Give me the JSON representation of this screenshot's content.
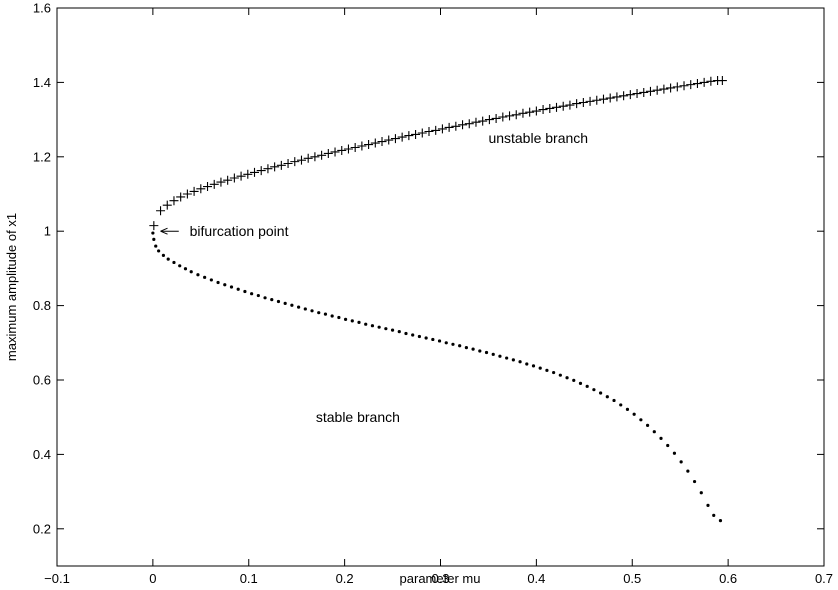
{
  "chart_data": {
    "type": "scatter",
    "title": "",
    "xlabel": "parameter mu",
    "ylabel": "maximum amplitude of x1",
    "xlim": [
      -0.1,
      0.7
    ],
    "ylim": [
      0.1,
      1.6
    ],
    "xticks": [
      -0.1,
      0,
      0.1,
      0.2,
      0.3,
      0.4,
      0.5,
      0.6,
      0.7
    ],
    "yticks": [
      0.2,
      0.4,
      0.6,
      0.8,
      1,
      1.2,
      1.4,
      1.6
    ],
    "grid": false,
    "series": [
      {
        "name": "unstable branch",
        "marker": "plus",
        "points": [
          [
            0.001,
            1.015
          ],
          [
            0.008,
            1.055
          ],
          [
            0.015,
            1.07
          ],
          [
            0.022,
            1.082
          ],
          [
            0.029,
            1.092
          ],
          [
            0.036,
            1.1
          ],
          [
            0.043,
            1.107
          ],
          [
            0.05,
            1.114
          ],
          [
            0.057,
            1.12
          ],
          [
            0.064,
            1.126
          ],
          [
            0.071,
            1.132
          ],
          [
            0.078,
            1.137
          ],
          [
            0.085,
            1.143
          ],
          [
            0.092,
            1.148
          ],
          [
            0.099,
            1.153
          ],
          [
            0.106,
            1.158
          ],
          [
            0.113,
            1.163
          ],
          [
            0.12,
            1.168
          ],
          [
            0.127,
            1.173
          ],
          [
            0.134,
            1.177
          ],
          [
            0.141,
            1.182
          ],
          [
            0.148,
            1.187
          ],
          [
            0.155,
            1.191
          ],
          [
            0.162,
            1.196
          ],
          [
            0.169,
            1.2
          ],
          [
            0.176,
            1.204
          ],
          [
            0.183,
            1.209
          ],
          [
            0.19,
            1.213
          ],
          [
            0.197,
            1.217
          ],
          [
            0.204,
            1.221
          ],
          [
            0.211,
            1.225
          ],
          [
            0.218,
            1.229
          ],
          [
            0.225,
            1.233
          ],
          [
            0.232,
            1.237
          ],
          [
            0.239,
            1.241
          ],
          [
            0.246,
            1.245
          ],
          [
            0.253,
            1.249
          ],
          [
            0.26,
            1.253
          ],
          [
            0.267,
            1.257
          ],
          [
            0.274,
            1.26
          ],
          [
            0.281,
            1.264
          ],
          [
            0.288,
            1.268
          ],
          [
            0.295,
            1.271
          ],
          [
            0.302,
            1.275
          ],
          [
            0.309,
            1.279
          ],
          [
            0.316,
            1.282
          ],
          [
            0.323,
            1.286
          ],
          [
            0.33,
            1.289
          ],
          [
            0.337,
            1.293
          ],
          [
            0.344,
            1.296
          ],
          [
            0.351,
            1.3
          ],
          [
            0.358,
            1.303
          ],
          [
            0.365,
            1.307
          ],
          [
            0.372,
            1.31
          ],
          [
            0.379,
            1.313
          ],
          [
            0.386,
            1.317
          ],
          [
            0.393,
            1.32
          ],
          [
            0.4,
            1.323
          ],
          [
            0.407,
            1.327
          ],
          [
            0.414,
            1.33
          ],
          [
            0.421,
            1.333
          ],
          [
            0.428,
            1.336
          ],
          [
            0.435,
            1.339
          ],
          [
            0.442,
            1.343
          ],
          [
            0.449,
            1.346
          ],
          [
            0.456,
            1.349
          ],
          [
            0.463,
            1.352
          ],
          [
            0.47,
            1.355
          ],
          [
            0.477,
            1.358
          ],
          [
            0.484,
            1.361
          ],
          [
            0.491,
            1.364
          ],
          [
            0.498,
            1.367
          ],
          [
            0.505,
            1.37
          ],
          [
            0.512,
            1.373
          ],
          [
            0.519,
            1.376
          ],
          [
            0.526,
            1.379
          ],
          [
            0.533,
            1.382
          ],
          [
            0.54,
            1.385
          ],
          [
            0.547,
            1.388
          ],
          [
            0.554,
            1.391
          ],
          [
            0.561,
            1.394
          ],
          [
            0.568,
            1.397
          ],
          [
            0.575,
            1.4
          ],
          [
            0.582,
            1.403
          ],
          [
            0.589,
            1.405
          ],
          [
            0.594,
            1.405
          ]
        ]
      },
      {
        "name": "stable branch",
        "marker": "dot",
        "points": [
          [
            0.0,
            0.995
          ],
          [
            0.001,
            0.978
          ],
          [
            0.003,
            0.96
          ],
          [
            0.006,
            0.947
          ],
          [
            0.011,
            0.935
          ],
          [
            0.016,
            0.925
          ],
          [
            0.022,
            0.916
          ],
          [
            0.028,
            0.907
          ],
          [
            0.034,
            0.899
          ],
          [
            0.04,
            0.891
          ],
          [
            0.047,
            0.883
          ],
          [
            0.054,
            0.876
          ],
          [
            0.061,
            0.869
          ],
          [
            0.068,
            0.862
          ],
          [
            0.075,
            0.856
          ],
          [
            0.082,
            0.85
          ],
          [
            0.089,
            0.844
          ],
          [
            0.096,
            0.838
          ],
          [
            0.103,
            0.832
          ],
          [
            0.11,
            0.827
          ],
          [
            0.117,
            0.821
          ],
          [
            0.124,
            0.816
          ],
          [
            0.131,
            0.811
          ],
          [
            0.138,
            0.806
          ],
          [
            0.145,
            0.801
          ],
          [
            0.152,
            0.796
          ],
          [
            0.159,
            0.791
          ],
          [
            0.166,
            0.786
          ],
          [
            0.173,
            0.781
          ],
          [
            0.18,
            0.777
          ],
          [
            0.187,
            0.772
          ],
          [
            0.194,
            0.768
          ],
          [
            0.201,
            0.763
          ],
          [
            0.208,
            0.759
          ],
          [
            0.215,
            0.755
          ],
          [
            0.222,
            0.75
          ],
          [
            0.229,
            0.746
          ],
          [
            0.236,
            0.742
          ],
          [
            0.243,
            0.738
          ],
          [
            0.25,
            0.734
          ],
          [
            0.257,
            0.73
          ],
          [
            0.264,
            0.725
          ],
          [
            0.271,
            0.721
          ],
          [
            0.278,
            0.717
          ],
          [
            0.285,
            0.713
          ],
          [
            0.292,
            0.709
          ],
          [
            0.299,
            0.705
          ],
          [
            0.306,
            0.7
          ],
          [
            0.313,
            0.696
          ],
          [
            0.32,
            0.692
          ],
          [
            0.327,
            0.687
          ],
          [
            0.334,
            0.683
          ],
          [
            0.341,
            0.678
          ],
          [
            0.348,
            0.674
          ],
          [
            0.355,
            0.669
          ],
          [
            0.362,
            0.664
          ],
          [
            0.369,
            0.659
          ],
          [
            0.376,
            0.654
          ],
          [
            0.383,
            0.649
          ],
          [
            0.39,
            0.643
          ],
          [
            0.397,
            0.638
          ],
          [
            0.404,
            0.632
          ],
          [
            0.411,
            0.626
          ],
          [
            0.418,
            0.62
          ],
          [
            0.425,
            0.613
          ],
          [
            0.432,
            0.606
          ],
          [
            0.439,
            0.599
          ],
          [
            0.446,
            0.591
          ],
          [
            0.453,
            0.583
          ],
          [
            0.46,
            0.574
          ],
          [
            0.467,
            0.565
          ],
          [
            0.474,
            0.555
          ],
          [
            0.481,
            0.545
          ],
          [
            0.488,
            0.533
          ],
          [
            0.495,
            0.521
          ],
          [
            0.502,
            0.508
          ],
          [
            0.509,
            0.493
          ],
          [
            0.516,
            0.478
          ],
          [
            0.523,
            0.461
          ],
          [
            0.53,
            0.443
          ],
          [
            0.537,
            0.424
          ],
          [
            0.544,
            0.403
          ],
          [
            0.551,
            0.38
          ],
          [
            0.558,
            0.355
          ],
          [
            0.565,
            0.327
          ],
          [
            0.572,
            0.297
          ],
          [
            0.579,
            0.263
          ],
          [
            0.585,
            0.236
          ],
          [
            0.592,
            0.222
          ]
        ]
      }
    ],
    "annotations": [
      {
        "text": "unstable branch",
        "x": 0.35,
        "y": 1.25
      },
      {
        "text": "stable branch",
        "x": 0.17,
        "y": 0.5
      },
      {
        "text": "bifurcation point",
        "x": 0.03,
        "y": 1.0,
        "arrow_from": [
          0.027,
          1.0
        ],
        "arrow_to": [
          0.008,
          1.0
        ]
      }
    ]
  }
}
